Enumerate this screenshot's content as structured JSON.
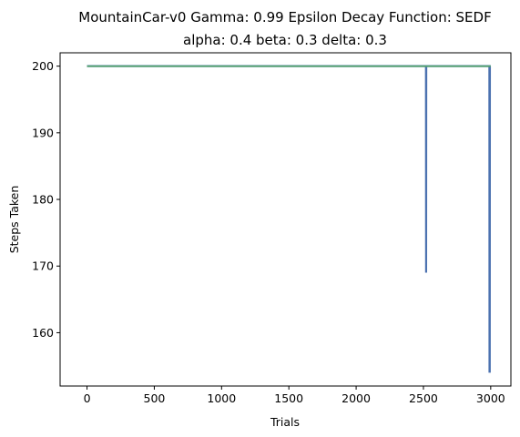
{
  "chart_data": {
    "type": "line",
    "title_lines": [
      "MountainCar-v0 Gamma: 0.99 Epsilon Decay Function: SEDF",
      "alpha: 0.4  beta: 0.3  delta: 0.3"
    ],
    "xlabel": "Trials",
    "ylabel": "Steps Taken",
    "xlim": [
      -200,
      3150
    ],
    "ylim": [
      152,
      202
    ],
    "xticks": [
      0,
      500,
      1000,
      1500,
      2000,
      2500,
      3000
    ],
    "yticks": [
      160,
      170,
      180,
      190,
      200
    ],
    "grid": false,
    "series": [
      {
        "color": "#4c72b0",
        "points": [
          [
            0,
            200
          ],
          [
            2519,
            200
          ],
          [
            2520,
            169
          ],
          [
            2521,
            200
          ],
          [
            2990,
            200
          ],
          [
            2991,
            154
          ],
          [
            2992,
            200
          ],
          [
            2993,
            154
          ],
          [
            2994,
            200
          ],
          [
            3000,
            200
          ]
        ]
      },
      {
        "color": "#55a868",
        "points": [
          [
            0,
            200
          ],
          [
            3000,
            200
          ]
        ]
      }
    ]
  }
}
